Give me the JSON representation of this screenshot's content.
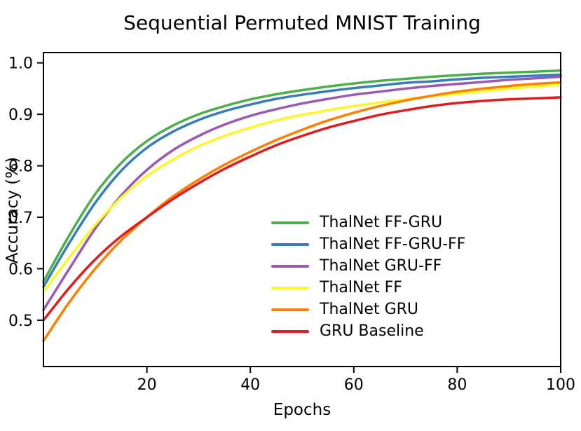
{
  "chart_data": {
    "type": "line",
    "title": "Sequential Permuted MNIST Training",
    "xlabel": "Epochs",
    "ylabel": "Accuracy (%)",
    "xlim": [
      0,
      100
    ],
    "ylim": [
      0.41,
      1.02
    ],
    "xticks": [
      20,
      40,
      60,
      80,
      100
    ],
    "yticks": [
      0.5,
      0.6,
      0.7,
      0.8,
      0.9,
      1.0
    ],
    "grid": false,
    "legend_position": "center-right",
    "frame": true,
    "axis_color": "#000000",
    "x": [
      0,
      5,
      10,
      15,
      20,
      25,
      30,
      35,
      40,
      45,
      50,
      55,
      60,
      65,
      70,
      75,
      80,
      85,
      90,
      95,
      100
    ],
    "series": [
      {
        "name": "ThalNet FF-GRU",
        "color": "#4daf4a",
        "values": [
          0.575,
          0.665,
          0.745,
          0.805,
          0.848,
          0.878,
          0.9,
          0.916,
          0.929,
          0.939,
          0.947,
          0.954,
          0.96,
          0.965,
          0.969,
          0.973,
          0.976,
          0.979,
          0.981,
          0.983,
          0.985
        ]
      },
      {
        "name": "ThalNet FF-GRU-FF",
        "color": "#377eb8",
        "values": [
          0.565,
          0.65,
          0.728,
          0.79,
          0.835,
          0.866,
          0.889,
          0.906,
          0.919,
          0.93,
          0.938,
          0.945,
          0.951,
          0.956,
          0.961,
          0.964,
          0.968,
          0.971,
          0.973,
          0.975,
          0.977
        ]
      },
      {
        "name": "ThalNet GRU-FF",
        "color": "#9b59b6",
        "values": [
          0.52,
          0.6,
          0.678,
          0.742,
          0.792,
          0.83,
          0.858,
          0.88,
          0.897,
          0.91,
          0.921,
          0.93,
          0.938,
          0.944,
          0.95,
          0.955,
          0.959,
          0.963,
          0.967,
          0.97,
          0.973
        ]
      },
      {
        "name": "ThalNet FF",
        "color": "#f9f927",
        "values": [
          0.555,
          0.622,
          0.685,
          0.738,
          0.78,
          0.812,
          0.838,
          0.858,
          0.874,
          0.888,
          0.899,
          0.908,
          0.916,
          0.923,
          0.929,
          0.935,
          0.94,
          0.945,
          0.95,
          0.954,
          0.958
        ]
      },
      {
        "name": "ThalNet GRU",
        "color": "#ff7f00",
        "values": [
          0.46,
          0.535,
          0.6,
          0.655,
          0.7,
          0.74,
          0.773,
          0.802,
          0.827,
          0.85,
          0.87,
          0.888,
          0.903,
          0.916,
          0.927,
          0.936,
          0.944,
          0.95,
          0.955,
          0.959,
          0.962
        ]
      },
      {
        "name": "GRU Baseline",
        "color": "#e41a1c",
        "values": [
          0.5,
          0.563,
          0.618,
          0.663,
          0.7,
          0.735,
          0.766,
          0.794,
          0.818,
          0.84,
          0.858,
          0.874,
          0.887,
          0.899,
          0.908,
          0.916,
          0.922,
          0.926,
          0.929,
          0.931,
          0.933
        ]
      }
    ]
  }
}
